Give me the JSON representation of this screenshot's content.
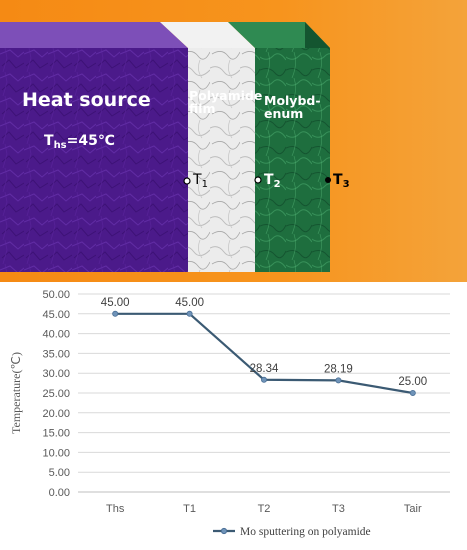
{
  "illustration": {
    "heat_source_label": "Heat source",
    "ths_prefix": "T",
    "ths_sub": "hs",
    "ths_value": "=45℃",
    "film_label_line1": "Polyamide",
    "film_label_line2": "film",
    "moly_label_line1": "Molybd-",
    "moly_label_line2": "enum",
    "t_letter": "T",
    "t1_sub": "1",
    "t2_sub": "2",
    "t3_sub": "3",
    "colors": {
      "background": "#f7941d",
      "heat_source": "#4b1a8a",
      "film": "#e6e6e6",
      "molybdenum": "#1e6e3e"
    }
  },
  "chart_data": {
    "type": "line",
    "categories": [
      "Ths",
      "T1",
      "T2",
      "T3",
      "Tair"
    ],
    "series": [
      {
        "name": "Mo sputtering on polyamide",
        "values": [
          45.0,
          45.0,
          28.34,
          28.19,
          25.0
        ],
        "color": "#3b5a73"
      }
    ],
    "data_labels": [
      "45.00",
      "45.00",
      "28.34",
      "28.19",
      "25.00"
    ],
    "ylabel": "Temperature(℃)",
    "xlabel": "",
    "ylim": [
      0,
      50
    ],
    "yticks": [
      "0.00",
      "5.00",
      "10.00",
      "15.00",
      "20.00",
      "25.00",
      "30.00",
      "35.00",
      "40.00",
      "45.00",
      "50.00"
    ],
    "grid": true,
    "legend_position": "bottom"
  }
}
